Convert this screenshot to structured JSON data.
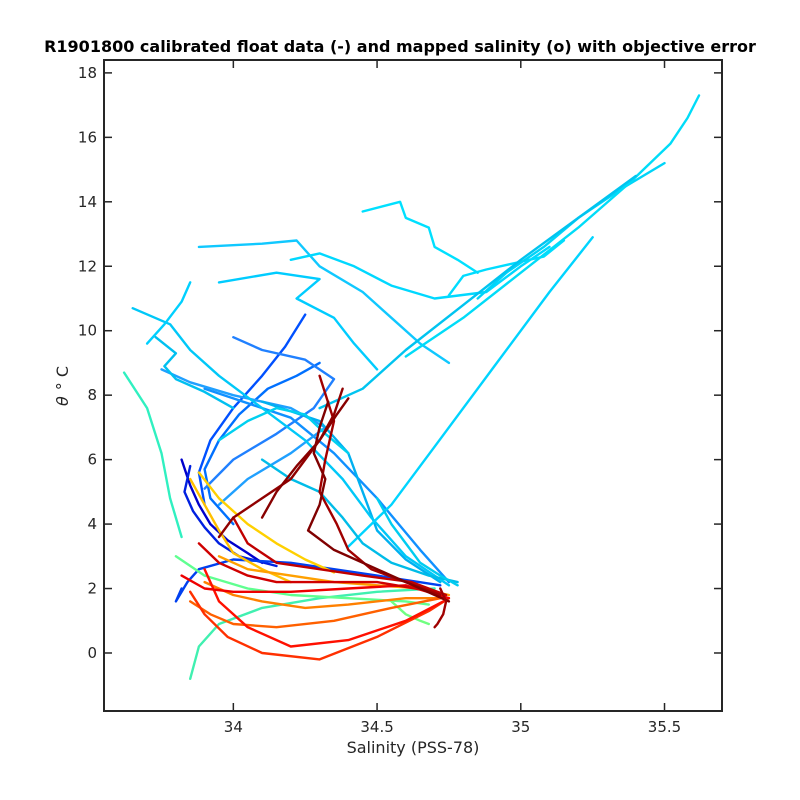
{
  "chart_data": {
    "type": "line",
    "title": "R1901800 calibrated float data (-) and mapped salinity (o) with objective error",
    "xlabel": "Salinity (PSS-78)",
    "ylabel_symbol": "θ",
    "ylabel_unit": "° C",
    "xlim": [
      33.55,
      35.7
    ],
    "ylim": [
      -1.8,
      18.4
    ],
    "x_ticks": [
      34,
      34.5,
      35,
      35.5
    ],
    "x_tick_labels": [
      "34",
      "34.5",
      "35",
      "35.5"
    ],
    "y_ticks": [
      0,
      2,
      4,
      6,
      8,
      10,
      12,
      14,
      16,
      18
    ],
    "y_tick_labels": [
      "0",
      "2",
      "4",
      "6",
      "8",
      "10",
      "12",
      "14",
      "16",
      "18"
    ],
    "grid": false,
    "colormap": [
      "#00008f",
      "#0000ff",
      "#0080ff",
      "#00ffff",
      "#80ff80",
      "#ffff00",
      "#ff8000",
      "#ff0000",
      "#800000"
    ],
    "series": [
      {
        "color": "#0000cc",
        "x": [
          33.82,
          33.85,
          33.88,
          33.92,
          33.98,
          34.05,
          34.1
        ],
        "y": [
          6.0,
          5.2,
          4.6,
          4.0,
          3.5,
          3.1,
          2.8
        ]
      },
      {
        "color": "#0020e0",
        "x": [
          33.85,
          33.83,
          33.86,
          33.9,
          33.95,
          34.02,
          34.15
        ],
        "y": [
          5.8,
          5.0,
          4.4,
          3.9,
          3.4,
          3.0,
          2.7
        ]
      },
      {
        "color": "#0040f0",
        "x": [
          33.82,
          33.8,
          33.84,
          33.88,
          34.0,
          34.2,
          34.5,
          34.72
        ],
        "y": [
          2.0,
          1.6,
          2.2,
          2.6,
          2.9,
          2.8,
          2.4,
          2.1
        ]
      },
      {
        "color": "#0050ff",
        "x": [
          34.25,
          34.18,
          34.1,
          34.0,
          33.92,
          33.88,
          33.9
        ],
        "y": [
          10.5,
          9.5,
          8.6,
          7.6,
          6.6,
          5.6,
          4.6
        ]
      },
      {
        "color": "#0070ff",
        "x": [
          34.3,
          34.22,
          34.12,
          34.02,
          33.95,
          33.9,
          33.92,
          34.0
        ],
        "y": [
          9.0,
          8.6,
          8.2,
          7.4,
          6.6,
          5.7,
          4.8,
          4.0
        ]
      },
      {
        "color": "#2080ff",
        "x": [
          34.0,
          34.1,
          34.25,
          34.35,
          34.28,
          34.15,
          34.0,
          33.9
        ],
        "y": [
          9.8,
          9.4,
          9.1,
          8.5,
          7.6,
          6.8,
          6.0,
          5.1
        ]
      },
      {
        "color": "#1090ff",
        "x": [
          33.9,
          34.0,
          34.2,
          34.35,
          34.5,
          34.65,
          34.75
        ],
        "y": [
          8.2,
          7.9,
          7.3,
          6.2,
          4.8,
          3.2,
          2.2
        ]
      },
      {
        "color": "#20a0ff",
        "x": [
          33.75,
          33.85,
          34.0,
          34.2,
          34.32,
          34.2,
          34.05,
          33.95
        ],
        "y": [
          8.8,
          8.4,
          8.0,
          7.6,
          7.0,
          6.2,
          5.4,
          4.6
        ]
      },
      {
        "color": "#00b0f0",
        "x": [
          34.1,
          34.3,
          34.4,
          34.45,
          34.5,
          34.6,
          34.72
        ],
        "y": [
          7.8,
          7.2,
          6.2,
          5.0,
          3.8,
          2.9,
          2.2
        ]
      },
      {
        "color": "#00c8f8",
        "x": [
          33.65,
          33.78,
          33.85,
          33.95,
          34.1,
          34.25,
          34.38,
          34.48,
          34.6,
          34.75
        ],
        "y": [
          10.7,
          10.2,
          9.4,
          8.6,
          7.6,
          6.6,
          5.4,
          4.2,
          3.0,
          2.1
        ]
      },
      {
        "color": "#00d4ff",
        "x": [
          34.4,
          34.55,
          34.7,
          34.9,
          35.1,
          35.25
        ],
        "y": [
          3.3,
          4.6,
          6.4,
          8.8,
          11.2,
          12.9
        ]
      },
      {
        "color": "#00d0ff",
        "x": [
          33.7,
          33.76,
          33.82,
          33.85
        ],
        "y": [
          9.6,
          10.2,
          10.9,
          11.5
        ]
      },
      {
        "color": "#00c0f0",
        "x": [
          33.73,
          33.8,
          33.76,
          33.8,
          33.9,
          34.0
        ],
        "y": [
          9.8,
          9.3,
          8.9,
          8.5,
          8.1,
          7.6
        ]
      },
      {
        "color": "#00ccff",
        "x": [
          33.95,
          34.15,
          34.3,
          34.22,
          34.35,
          34.42,
          34.5
        ],
        "y": [
          11.5,
          11.8,
          11.6,
          11.0,
          10.4,
          9.6,
          8.8
        ]
      },
      {
        "color": "#10c8ff",
        "x": [
          33.88,
          34.1,
          34.22,
          34.3,
          34.45,
          34.55,
          34.65,
          34.75
        ],
        "y": [
          12.6,
          12.7,
          12.8,
          12.0,
          11.2,
          10.4,
          9.6,
          9.0
        ]
      },
      {
        "color": "#00d8ff",
        "x": [
          34.2,
          34.3,
          34.42,
          34.55,
          34.7,
          34.88,
          35.0,
          35.1
        ],
        "y": [
          12.2,
          12.4,
          12.0,
          11.4,
          11.0,
          11.2,
          12.0,
          12.6
        ]
      },
      {
        "color": "#00e0ff",
        "x": [
          34.45,
          34.58,
          34.6,
          34.68,
          34.7,
          34.78,
          34.85
        ],
        "y": [
          13.7,
          14.0,
          13.5,
          13.2,
          12.6,
          12.2,
          11.8
        ]
      },
      {
        "color": "#00dcff",
        "x": [
          34.75,
          34.8,
          34.88,
          34.98,
          35.08,
          35.15
        ],
        "y": [
          11.1,
          11.7,
          11.9,
          12.1,
          12.3,
          12.8
        ]
      },
      {
        "color": "#00d4f8",
        "x": [
          34.85,
          34.95,
          35.08,
          35.2,
          35.35,
          35.5
        ],
        "y": [
          11.0,
          11.8,
          12.6,
          13.5,
          14.4,
          15.2
        ]
      },
      {
        "color": "#00dcf8",
        "x": [
          34.6,
          34.8,
          35.0,
          35.2,
          35.38,
          35.52,
          35.58,
          35.62
        ],
        "y": [
          9.2,
          10.4,
          11.8,
          13.2,
          14.6,
          15.8,
          16.6,
          17.3
        ]
      },
      {
        "color": "#00c4f0",
        "x": [
          34.3,
          34.45,
          34.6,
          34.8,
          35.0,
          35.2,
          35.4
        ],
        "y": [
          7.6,
          8.2,
          9.4,
          10.8,
          12.2,
          13.5,
          14.8
        ]
      },
      {
        "color": "#00bce8",
        "x": [
          34.1,
          34.2,
          34.3,
          34.38,
          34.45,
          34.55,
          34.68,
          34.78
        ],
        "y": [
          6.0,
          5.4,
          5.0,
          4.2,
          3.4,
          2.8,
          2.4,
          2.2
        ]
      },
      {
        "color": "#00d0f0",
        "x": [
          33.95,
          34.05,
          34.15,
          34.25,
          34.32,
          34.4
        ],
        "y": [
          6.6,
          7.2,
          7.6,
          7.4,
          6.8,
          6.2
        ]
      },
      {
        "color": "#00ccf0",
        "x": [
          34.5,
          34.55,
          34.6,
          34.65,
          34.72,
          34.78
        ],
        "y": [
          4.8,
          4.0,
          3.4,
          2.8,
          2.4,
          2.1
        ]
      },
      {
        "color": "#30f0c0",
        "x": [
          33.62,
          33.7,
          33.75,
          33.78,
          33.82
        ],
        "y": [
          8.7,
          7.6,
          6.2,
          4.8,
          3.6
        ]
      },
      {
        "color": "#40f0b0",
        "x": [
          33.85,
          33.88,
          33.95,
          34.1,
          34.3,
          34.5,
          34.7
        ],
        "y": [
          -0.8,
          0.2,
          0.9,
          1.4,
          1.7,
          1.9,
          2.0
        ]
      },
      {
        "color": "#60ff90",
        "x": [
          33.8,
          33.9,
          34.05,
          34.2,
          34.4,
          34.6,
          34.68
        ],
        "y": [
          3.0,
          2.4,
          2.0,
          1.8,
          1.7,
          1.6,
          1.5
        ]
      },
      {
        "color": "#70ff80",
        "x": [
          34.55,
          34.6,
          34.65,
          34.68
        ],
        "y": [
          1.6,
          1.2,
          1.0,
          0.9
        ]
      },
      {
        "color": "#ffd000",
        "x": [
          33.88,
          33.95,
          34.05,
          34.15,
          34.25,
          34.35
        ],
        "y": [
          5.6,
          4.8,
          4.0,
          3.4,
          2.9,
          2.5
        ]
      },
      {
        "color": "#ffc000",
        "x": [
          33.85,
          33.9,
          33.95,
          34.0,
          34.1,
          34.2
        ],
        "y": [
          5.4,
          4.6,
          3.8,
          3.1,
          2.6,
          2.2
        ]
      },
      {
        "color": "#ffa000",
        "x": [
          33.95,
          34.05,
          34.2,
          34.35,
          34.5,
          34.65,
          34.75
        ],
        "y": [
          3.0,
          2.6,
          2.4,
          2.2,
          2.1,
          2.0,
          1.8
        ]
      },
      {
        "color": "#ff8000",
        "x": [
          33.9,
          34.0,
          34.1,
          34.25,
          34.4,
          34.6,
          34.74
        ],
        "y": [
          2.2,
          1.8,
          1.6,
          1.4,
          1.5,
          1.7,
          1.7
        ]
      },
      {
        "color": "#ff6000",
        "x": [
          33.85,
          33.92,
          34.0,
          34.15,
          34.35,
          34.55,
          34.72
        ],
        "y": [
          1.6,
          1.2,
          0.9,
          0.8,
          1.0,
          1.4,
          1.7
        ]
      },
      {
        "color": "#ff3000",
        "x": [
          33.85,
          33.9,
          33.98,
          34.1,
          34.3,
          34.5,
          34.68,
          34.75
        ],
        "y": [
          1.9,
          1.2,
          0.5,
          0.0,
          -0.2,
          0.5,
          1.3,
          1.7
        ]
      },
      {
        "color": "#ff1000",
        "x": [
          33.9,
          33.95,
          34.05,
          34.2,
          34.4,
          34.6,
          34.73
        ],
        "y": [
          2.6,
          1.6,
          0.8,
          0.2,
          0.4,
          1.0,
          1.6
        ]
      },
      {
        "color": "#ee0000",
        "x": [
          33.82,
          33.9,
          34.0,
          34.2,
          34.4,
          34.6,
          34.75
        ],
        "y": [
          2.4,
          2.0,
          1.9,
          1.9,
          2.0,
          2.1,
          1.7
        ]
      },
      {
        "color": "#d00000",
        "x": [
          33.88,
          33.95,
          34.05,
          34.15,
          34.3,
          34.5,
          34.7
        ],
        "y": [
          3.4,
          2.8,
          2.4,
          2.2,
          2.2,
          2.2,
          1.9
        ]
      },
      {
        "color": "#c00000",
        "x": [
          34.0,
          34.05,
          34.15,
          34.3,
          34.45,
          34.62,
          34.74
        ],
        "y": [
          4.2,
          3.4,
          2.8,
          2.6,
          2.4,
          2.2,
          1.8
        ]
      },
      {
        "color": "#a00000",
        "x": [
          34.3,
          34.35,
          34.32,
          34.3,
          34.36,
          34.4,
          34.48,
          34.6,
          34.72
        ],
        "y": [
          8.6,
          7.2,
          6.0,
          5.0,
          4.0,
          3.2,
          2.6,
          2.2,
          1.8
        ]
      },
      {
        "color": "#900000",
        "x": [
          34.38,
          34.35,
          34.3,
          34.25,
          34.2,
          34.1,
          34.0,
          33.95
        ],
        "y": [
          8.2,
          7.4,
          6.6,
          6.0,
          5.4,
          4.8,
          4.2,
          3.6
        ]
      },
      {
        "color": "#800000",
        "x": [
          34.33,
          34.3,
          34.28,
          34.32,
          34.3,
          34.26,
          34.35,
          34.5,
          34.65,
          34.75
        ],
        "y": [
          7.8,
          7.0,
          6.2,
          5.4,
          4.6,
          3.8,
          3.2,
          2.6,
          2.0,
          1.6
        ]
      },
      {
        "color": "#880000",
        "x": [
          34.1,
          34.15,
          34.22,
          34.3,
          34.36,
          34.4
        ],
        "y": [
          4.2,
          5.0,
          5.8,
          6.6,
          7.4,
          7.9
        ]
      },
      {
        "color": "#a00000",
        "x": [
          34.72,
          34.74,
          34.73,
          34.71,
          34.7
        ],
        "y": [
          2.0,
          1.6,
          1.2,
          0.9,
          0.8
        ]
      }
    ]
  }
}
